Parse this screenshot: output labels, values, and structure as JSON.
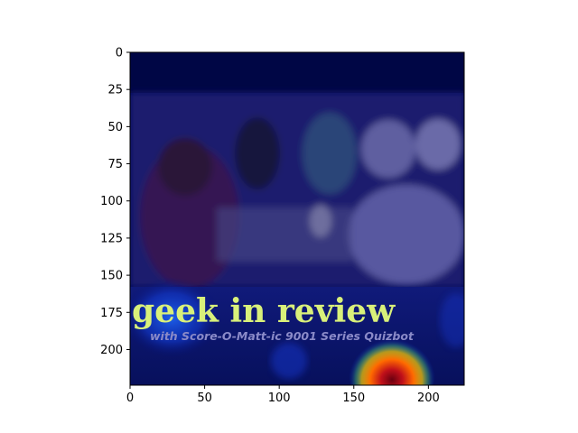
{
  "chart_data": {
    "type": "heatmap",
    "title": "",
    "xlabel": "",
    "ylabel": "",
    "xlim": [
      0,
      224
    ],
    "ylim": [
      224,
      0
    ],
    "x_ticks": [
      0,
      50,
      100,
      150,
      200
    ],
    "y_ticks": [
      0,
      25,
      50,
      75,
      100,
      125,
      150,
      175,
      200
    ],
    "colormap": "jet",
    "hotspots": [
      {
        "x": 175,
        "y": 215,
        "intensity": 1.0
      },
      {
        "x": 25,
        "y": 180,
        "intensity": 0.35
      }
    ],
    "background_image": {
      "banner_title": "geek in review",
      "banner_subtitle": "with Score-O-Matt-ic 9001 Series Quizbot"
    }
  },
  "colors": {
    "overlay": "#000a6e",
    "banner_text": "#d9f07a",
    "heat_hot": "#b0001a",
    "heat_warm": "#ff8c00"
  }
}
